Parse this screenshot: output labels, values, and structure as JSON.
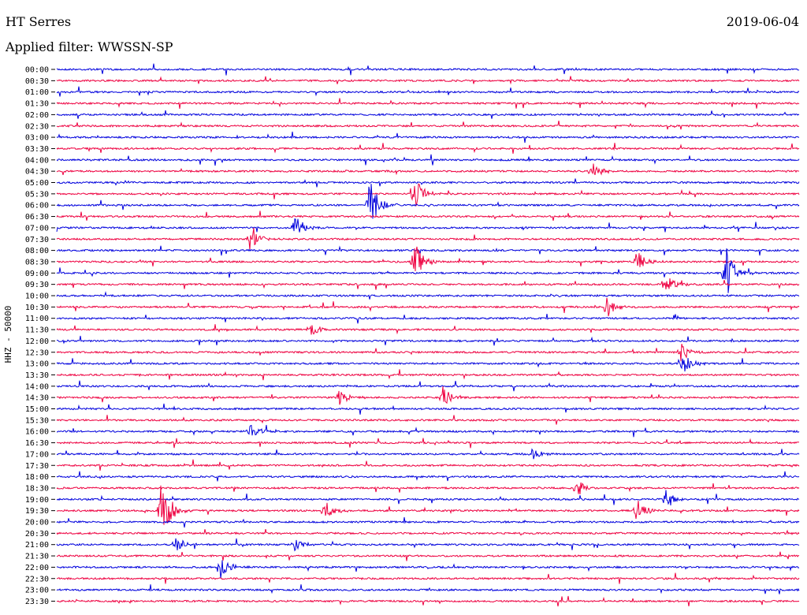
{
  "header": {
    "station": "HT Serres",
    "date": "2019-06-04",
    "filter": "Applied filter: WWSSN-SP"
  },
  "chart_data": {
    "type": "line",
    "ylabel": "HHZ - 50000",
    "row_labels": [
      "00:00",
      "00:30",
      "01:00",
      "01:30",
      "02:00",
      "02:30",
      "03:00",
      "03:30",
      "04:00",
      "04:30",
      "05:00",
      "05:30",
      "06:00",
      "06:30",
      "07:00",
      "07:30",
      "08:00",
      "08:30",
      "09:00",
      "09:30",
      "10:00",
      "10:30",
      "11:00",
      "11:30",
      "12:00",
      "12:30",
      "13:00",
      "13:30",
      "14:00",
      "14:30",
      "15:00",
      "15:30",
      "16:00",
      "16:30",
      "17:00",
      "17:30",
      "18:00",
      "18:30",
      "19:00",
      "19:30",
      "20:00",
      "20:30",
      "21:00",
      "21:30",
      "22:00",
      "22:30",
      "23:00",
      "23:30"
    ],
    "colors": [
      "#0000dd",
      "#ee0040"
    ],
    "grid": false,
    "events": [
      {
        "row": "05:30",
        "minute": 14.4,
        "amp": 1.6
      },
      {
        "row": "06:00",
        "minute": 12.6,
        "amp": 2.2
      },
      {
        "row": "07:00",
        "minute": 9.6,
        "amp": 1.0
      },
      {
        "row": "07:30",
        "minute": 7.8,
        "amp": 0.9
      },
      {
        "row": "08:30",
        "minute": 14.4,
        "amp": 1.8
      },
      {
        "row": "08:30",
        "minute": 23.4,
        "amp": 0.9
      },
      {
        "row": "09:00",
        "minute": 27.0,
        "amp": 2.2
      },
      {
        "row": "09:30",
        "minute": 24.6,
        "amp": 0.8
      },
      {
        "row": "10:30",
        "minute": 22.2,
        "amp": 1.1
      },
      {
        "row": "11:30",
        "minute": 10.2,
        "amp": 0.6
      },
      {
        "row": "13:00",
        "minute": 25.2,
        "amp": 1.0
      },
      {
        "row": "14:30",
        "minute": 15.6,
        "amp": 0.9
      },
      {
        "row": "14:30",
        "minute": 11.4,
        "amp": 0.6
      },
      {
        "row": "16:00",
        "minute": 7.8,
        "amp": 0.6
      },
      {
        "row": "17:00",
        "minute": 19.2,
        "amp": 0.5
      },
      {
        "row": "18:30",
        "minute": 21.0,
        "amp": 0.7
      },
      {
        "row": "19:00",
        "minute": 24.6,
        "amp": 0.7
      },
      {
        "row": "19:30",
        "minute": 4.2,
        "amp": 2.6
      },
      {
        "row": "19:30",
        "minute": 10.8,
        "amp": 0.9
      },
      {
        "row": "19:30",
        "minute": 23.4,
        "amp": 0.9
      },
      {
        "row": "21:00",
        "minute": 4.8,
        "amp": 0.6
      },
      {
        "row": "21:00",
        "minute": 9.6,
        "amp": 0.5
      },
      {
        "row": "22:00",
        "minute": 6.6,
        "amp": 1.0
      },
      {
        "row": "12:30",
        "minute": 25.2,
        "amp": 0.7
      },
      {
        "row": "04:30",
        "minute": 21.6,
        "amp": 0.7
      }
    ]
  }
}
